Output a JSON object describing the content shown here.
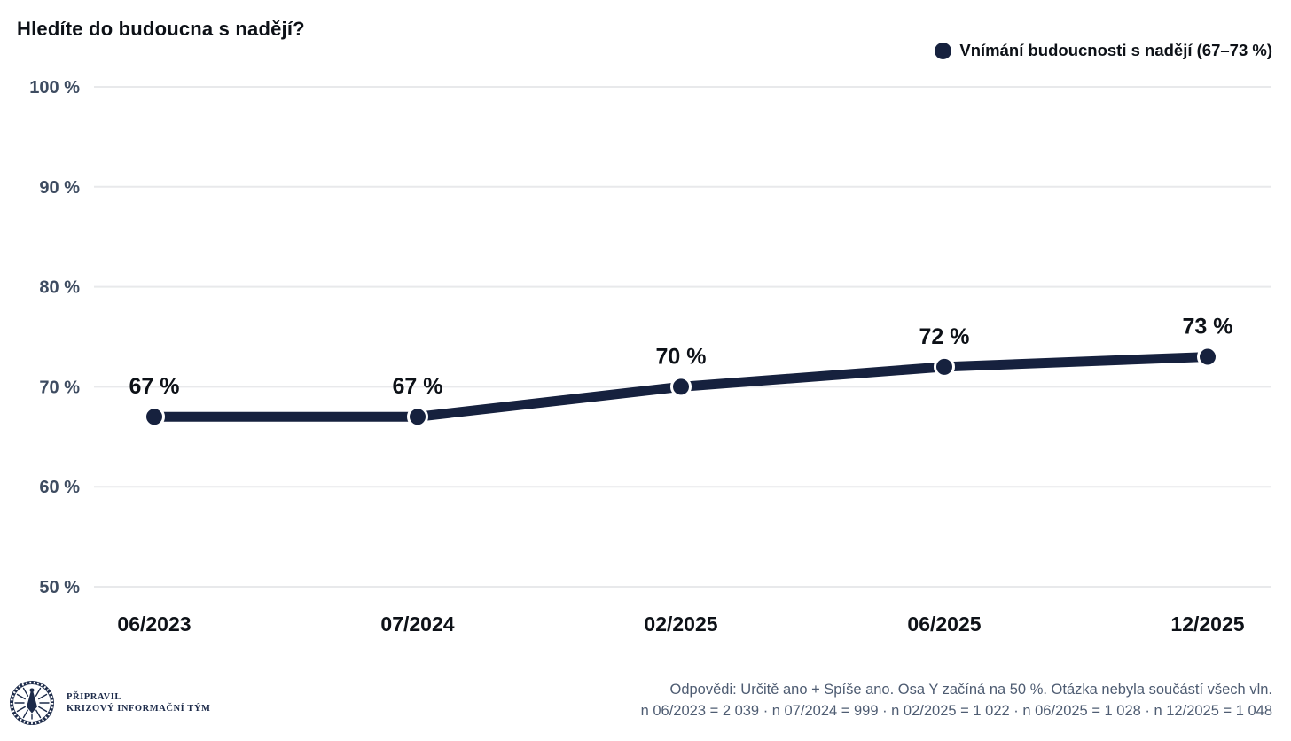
{
  "header": {
    "title": "Hledíte do budoucna s nadějí?",
    "legend": {
      "marker": "filled-circle",
      "label": "Vnímání budoucnosti s nadějí (67–73 %)"
    }
  },
  "chart_data": {
    "type": "line",
    "title": "Hledíte do budoucna s nadějí?",
    "categories": [
      "06/2023",
      "07/2024",
      "02/2025",
      "06/2025",
      "12/2025"
    ],
    "series": [
      {
        "name": "Vnímání budoucnosti s nadějí (67–73 %)",
        "values": [
          67,
          67,
          70,
          72,
          73
        ],
        "point_labels": [
          "67 %",
          "67 %",
          "70 %",
          "72 %",
          "73 %"
        ],
        "color": "#16213E"
      }
    ],
    "xlabel": "",
    "ylabel": "",
    "ylim": [
      50,
      100
    ],
    "yticks": [
      50,
      60,
      70,
      80,
      90,
      100
    ],
    "ytick_labels": [
      "50 %",
      "60 %",
      "70 %",
      "80 %",
      "90 %",
      "100 %"
    ],
    "grid": true,
    "legend_position": "top-right"
  },
  "footnotes": {
    "line1": "Odpovědi: Určitě ano + Spíše ano. Osa Y začíná na 50 %. Otázka nebyla součástí všech vln.",
    "line2": "n 06/2023 = 2 039 · n 07/2024 = 999 · n 02/2025 = 1 022 · n 06/2025 = 1 028 · n 12/2025 = 1 048"
  },
  "branding": {
    "prepared_by_line1": "PŘIPRAVIL",
    "prepared_by_line2": "KRIZOVÝ INFORMAČNÍ TÝM"
  },
  "colors": {
    "series": "#16213E",
    "title_text": "#0D1117",
    "y_tick_label": "#3E4C61",
    "x_tick_label": "#0D1117",
    "footnote": "#4E5C72",
    "gridline": "#E8E9EB",
    "brand_navy": "#1D2B4A",
    "background": "#FFFFFF"
  }
}
